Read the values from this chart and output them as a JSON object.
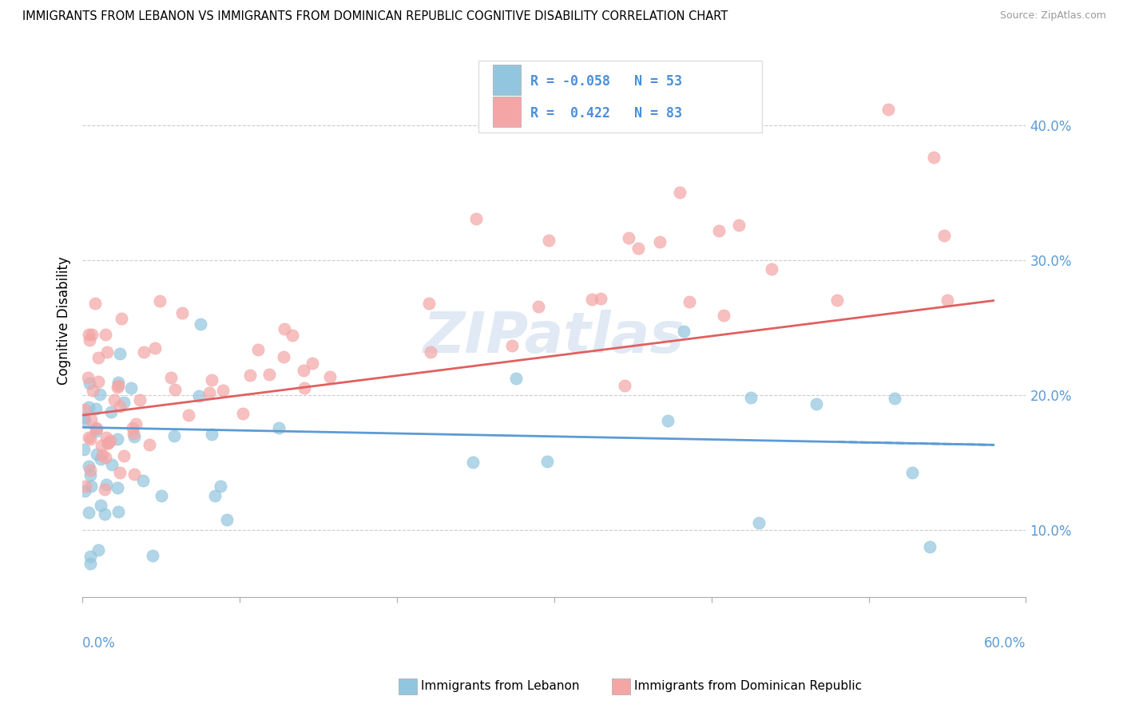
{
  "title": "IMMIGRANTS FROM LEBANON VS IMMIGRANTS FROM DOMINICAN REPUBLIC COGNITIVE DISABILITY CORRELATION CHART",
  "source": "Source: ZipAtlas.com",
  "ylabel": "Cognitive Disability",
  "color_lebanon": "#92C5DE",
  "color_dominican": "#F4A6A6",
  "color_line_lebanon": "#5B9BD5",
  "color_line_dominican": "#E06060",
  "watermark": "ZIPatlas",
  "xlim": [
    0.0,
    0.6
  ],
  "ylim": [
    0.05,
    0.46
  ],
  "yticks": [
    0.1,
    0.2,
    0.3,
    0.4
  ],
  "ytick_labels": [
    "10.0%",
    "20.0%",
    "30.0%",
    "40.0%"
  ],
  "r_leb": -0.058,
  "n_leb": 53,
  "r_dom": 0.422,
  "n_dom": 83,
  "seed": 42
}
